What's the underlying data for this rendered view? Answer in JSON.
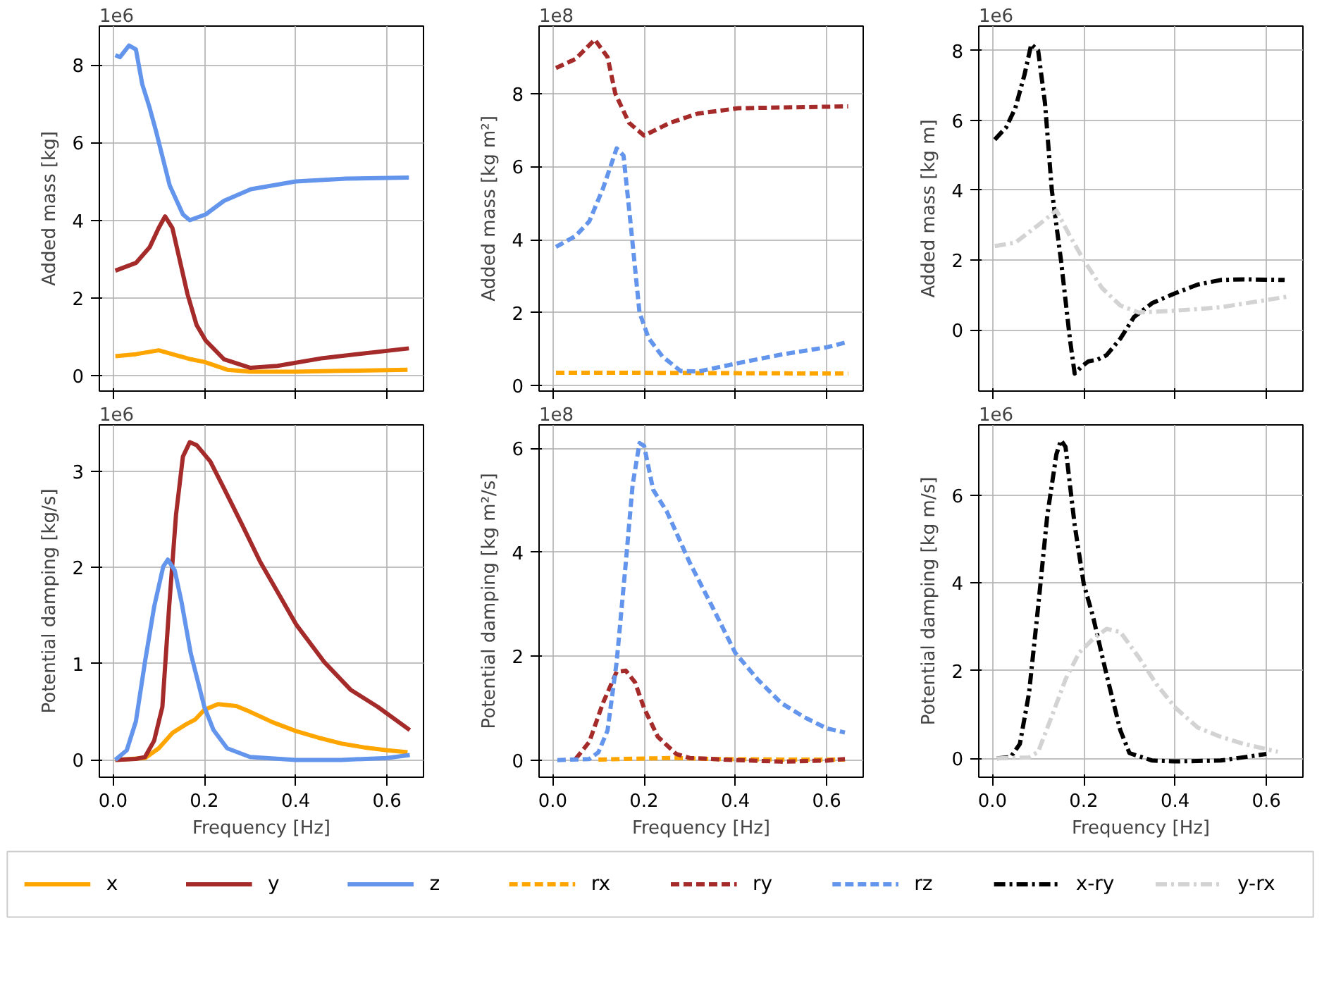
{
  "chart_data": [
    {
      "type": "line",
      "ylabel": "Added mass [kg]",
      "annotations": [
        "1e6"
      ],
      "xlim": [
        -0.03,
        0.68
      ],
      "xticks": [
        {
          "value": 0,
          "label": null
        },
        {
          "value": 0.2,
          "label": null
        },
        {
          "value": 0.4,
          "label": null
        },
        {
          "value": 0.6,
          "label": null
        }
      ],
      "ylim": [
        -0.4,
        9.0
      ],
      "yticks": [
        0,
        2,
        4,
        6,
        8
      ],
      "tick_labels": "y",
      "grid": true,
      "legend": "bottom",
      "series": [
        {
          "name": "x",
          "color": "#ffa500",
          "line_style": "solid",
          "x": [
            0.005,
            0.05,
            0.1,
            0.13,
            0.17,
            0.2,
            0.25,
            0.3,
            0.4,
            0.5,
            0.645
          ],
          "values": [
            0.5,
            0.55,
            0.65,
            0.55,
            0.42,
            0.35,
            0.15,
            0.1,
            0.1,
            0.12,
            0.15
          ]
        },
        {
          "name": "y",
          "color": "#a52a2a",
          "line_style": "solid",
          "x": [
            0.005,
            0.05,
            0.08,
            0.1,
            0.114,
            0.13,
            0.163,
            0.183,
            0.203,
            0.243,
            0.3,
            0.36,
            0.46,
            0.648
          ],
          "values": [
            2.7,
            2.9,
            3.3,
            3.8,
            4.1,
            3.8,
            2.1,
            1.3,
            0.9,
            0.42,
            0.2,
            0.25,
            0.45,
            0.7
          ]
        },
        {
          "name": "z",
          "color": "#6495ed",
          "line_style": "solid",
          "x": [
            0.005,
            0.015,
            0.035,
            0.05,
            0.064,
            0.08,
            0.094,
            0.124,
            0.153,
            0.168,
            0.203,
            0.243,
            0.302,
            0.4,
            0.51,
            0.648
          ],
          "values": [
            8.25,
            8.2,
            8.5,
            8.4,
            7.5,
            6.9,
            6.3,
            4.9,
            4.15,
            4.0,
            4.15,
            4.5,
            4.8,
            5.0,
            5.07,
            5.1
          ]
        }
      ]
    },
    {
      "type": "line",
      "ylabel": "Added mass [kg m²]",
      "annotations": [
        "1e8"
      ],
      "xlim": [
        -0.03,
        0.68
      ],
      "xticks": [
        {
          "value": 0,
          "label": null
        },
        {
          "value": 0.2,
          "label": null
        },
        {
          "value": 0.4,
          "label": null
        },
        {
          "value": 0.6,
          "label": null
        }
      ],
      "ylim": [
        -0.15,
        9.85
      ],
      "yticks": [
        0,
        2,
        4,
        6,
        8
      ],
      "tick_labels": "y",
      "grid": true,
      "legend": "bottom",
      "series": [
        {
          "name": "rx",
          "color": "#ffa500",
          "line_style": "dashed",
          "x": [
            0.007,
            0.2,
            0.4,
            0.647
          ],
          "values": [
            0.35,
            0.35,
            0.34,
            0.33
          ]
        },
        {
          "name": "ry",
          "color": "#a52a2a",
          "line_style": "dashed",
          "x": [
            0.007,
            0.05,
            0.092,
            0.12,
            0.137,
            0.167,
            0.2,
            0.257,
            0.317,
            0.407,
            0.647
          ],
          "values": [
            8.7,
            8.95,
            9.48,
            9.0,
            8.0,
            7.2,
            6.85,
            7.2,
            7.45,
            7.6,
            7.65
          ]
        },
        {
          "name": "rz",
          "color": "#6495ed",
          "line_style": "dashed",
          "x": [
            0.007,
            0.05,
            0.08,
            0.11,
            0.14,
            0.155,
            0.17,
            0.19,
            0.21,
            0.24,
            0.28,
            0.32,
            0.4,
            0.5,
            0.6,
            0.647
          ],
          "values": [
            3.8,
            4.1,
            4.5,
            5.4,
            6.5,
            6.3,
            4.5,
            2.0,
            1.3,
            0.8,
            0.4,
            0.39,
            0.6,
            0.85,
            1.05,
            1.2
          ]
        }
      ]
    },
    {
      "type": "line",
      "ylabel": "Added mass [kg m]",
      "annotations": [
        "1e6"
      ],
      "xlim": [
        -0.03,
        0.68
      ],
      "xticks": [
        {
          "value": 0,
          "label": null
        },
        {
          "value": 0.2,
          "label": null
        },
        {
          "value": 0.4,
          "label": null
        },
        {
          "value": 0.6,
          "label": null
        }
      ],
      "ylim": [
        -1.75,
        8.7
      ],
      "yticks": [
        0,
        2,
        4,
        6,
        8
      ],
      "tick_labels": "y",
      "grid": true,
      "legend": "bottom",
      "series": [
        {
          "name": "x-ry",
          "color": "#000000",
          "line_style": "dashdot",
          "x": [
            0.005,
            0.03,
            0.05,
            0.07,
            0.085,
            0.1,
            0.115,
            0.13,
            0.15,
            0.17,
            0.18,
            0.195,
            0.21,
            0.23,
            0.25,
            0.28,
            0.31,
            0.35,
            0.4,
            0.45,
            0.5,
            0.55,
            0.64
          ],
          "values": [
            5.45,
            5.8,
            6.35,
            7.3,
            8.18,
            8.0,
            6.5,
            4.0,
            2.0,
            -0.3,
            -1.25,
            -1.05,
            -0.9,
            -0.85,
            -0.72,
            -0.25,
            0.37,
            0.77,
            1.05,
            1.3,
            1.43,
            1.45,
            1.43
          ]
        },
        {
          "name": "y-rx",
          "color": "#d3d3d3",
          "line_style": "dashdot",
          "x": [
            0.005,
            0.05,
            0.1,
            0.14,
            0.17,
            0.2,
            0.24,
            0.28,
            0.32,
            0.4,
            0.5,
            0.645
          ],
          "values": [
            2.4,
            2.5,
            3.0,
            3.42,
            2.68,
            2.0,
            1.2,
            0.7,
            0.5,
            0.55,
            0.65,
            0.95
          ]
        }
      ]
    },
    {
      "type": "line",
      "xlabel": "Frequency [Hz]",
      "ylabel": "Potential damping [kg/s]",
      "annotations": [
        "1e6"
      ],
      "xlim": [
        -0.03,
        0.68
      ],
      "xticks": [
        {
          "value": 0,
          "label": "0.0"
        },
        {
          "value": 0.2,
          "label": "0.2"
        },
        {
          "value": 0.4,
          "label": "0.4"
        },
        {
          "value": 0.6,
          "label": "0.6"
        }
      ],
      "ylim": [
        -0.18,
        3.48
      ],
      "yticks": [
        0,
        1,
        2,
        3
      ],
      "grid": true,
      "series": [
        {
          "color": "#ffa500",
          "line_style": "solid",
          "x": [
            0.005,
            0.07,
            0.1,
            0.13,
            0.16,
            0.18,
            0.2,
            0.23,
            0.27,
            0.3,
            0.35,
            0.4,
            0.45,
            0.5,
            0.55,
            0.6,
            0.645
          ],
          "values": [
            0,
            0.02,
            0.12,
            0.28,
            0.37,
            0.42,
            0.52,
            0.58,
            0.56,
            0.5,
            0.39,
            0.3,
            0.23,
            0.17,
            0.13,
            0.1,
            0.08
          ]
        },
        {
          "color": "#a52a2a",
          "line_style": "solid",
          "x": [
            0.005,
            0.05,
            0.07,
            0.09,
            0.108,
            0.123,
            0.138,
            0.153,
            0.168,
            0.183,
            0.213,
            0.243,
            0.283,
            0.322,
            0.362,
            0.402,
            0.462,
            0.52,
            0.58,
            0.65
          ],
          "values": [
            0,
            0.01,
            0.03,
            0.2,
            0.55,
            1.6,
            2.55,
            3.15,
            3.3,
            3.27,
            3.1,
            2.82,
            2.44,
            2.06,
            1.73,
            1.4,
            1.02,
            0.73,
            0.55,
            0.31
          ]
        },
        {
          "color": "#6495ed",
          "line_style": "solid",
          "x": [
            0.005,
            0.03,
            0.05,
            0.07,
            0.09,
            0.11,
            0.12,
            0.135,
            0.15,
            0.17,
            0.2,
            0.22,
            0.25,
            0.3,
            0.4,
            0.5,
            0.6,
            0.65
          ],
          "values": [
            0,
            0.1,
            0.4,
            1.02,
            1.59,
            2.01,
            2.08,
            1.97,
            1.64,
            1.11,
            0.55,
            0.31,
            0.12,
            0.03,
            0.0,
            0.0,
            0.02,
            0.05
          ]
        }
      ]
    },
    {
      "type": "line",
      "xlabel": "Frequency [Hz]",
      "ylabel": "Potential damping [kg m²/s]",
      "annotations": [
        "1e8"
      ],
      "xlim": [
        -0.03,
        0.68
      ],
      "xticks": [
        {
          "value": 0,
          "label": "0.0"
        },
        {
          "value": 0.2,
          "label": "0.2"
        },
        {
          "value": 0.4,
          "label": "0.4"
        },
        {
          "value": 0.6,
          "label": "0.6"
        }
      ],
      "ylim": [
        -0.33,
        6.45
      ],
      "yticks": [
        0,
        2,
        4,
        6
      ],
      "grid": true,
      "series": [
        {
          "color": "#ffa500",
          "line_style": "dashed",
          "x": [
            0.1,
            0.2,
            0.27,
            0.35,
            0.5,
            0.64
          ],
          "values": [
            0.01,
            0.03,
            0.04,
            0.02,
            0.01,
            0.01
          ]
        },
        {
          "color": "#a52a2a",
          "line_style": "dashed",
          "x": [
            0.05,
            0.08,
            0.11,
            0.14,
            0.16,
            0.18,
            0.2,
            0.23,
            0.27,
            0.3,
            0.4,
            0.5,
            0.6,
            0.64
          ],
          "values": [
            0.02,
            0.35,
            1.1,
            1.7,
            1.72,
            1.5,
            1.0,
            0.45,
            0.12,
            0.04,
            0.0,
            -0.03,
            -0.01,
            0.02
          ]
        },
        {
          "color": "#6495ed",
          "line_style": "dashed",
          "x": [
            0.01,
            0.08,
            0.1,
            0.12,
            0.14,
            0.16,
            0.175,
            0.19,
            0.2,
            0.22,
            0.25,
            0.3,
            0.35,
            0.4,
            0.45,
            0.5,
            0.55,
            0.6,
            0.64
          ],
          "values": [
            0,
            0.02,
            0.15,
            0.57,
            1.89,
            3.8,
            5.3,
            6.1,
            6.05,
            5.2,
            4.78,
            3.8,
            2.94,
            2.06,
            1.54,
            1.1,
            0.83,
            0.61,
            0.53
          ]
        }
      ]
    },
    {
      "type": "line",
      "xlabel": "Frequency [Hz]",
      "ylabel": "Potential damping [kg m/s]",
      "annotations": [
        "1e6"
      ],
      "xlim": [
        -0.03,
        0.68
      ],
      "xticks": [
        {
          "value": 0,
          "label": "0.0"
        },
        {
          "value": 0.2,
          "label": "0.2"
        },
        {
          "value": 0.4,
          "label": "0.4"
        },
        {
          "value": 0.6,
          "label": "0.6"
        }
      ],
      "ylim": [
        -0.43,
        7.6
      ],
      "yticks": [
        0,
        2,
        4,
        6
      ],
      "grid": true,
      "series": [
        {
          "color": "#000000",
          "line_style": "dashdot",
          "x": [
            0.01,
            0.04,
            0.06,
            0.08,
            0.1,
            0.12,
            0.14,
            0.15,
            0.16,
            0.18,
            0.2,
            0.22,
            0.25,
            0.28,
            0.3,
            0.35,
            0.4,
            0.5,
            0.6
          ],
          "values": [
            0,
            0.03,
            0.33,
            1.48,
            3.45,
            5.53,
            6.93,
            7.25,
            7.1,
            5.32,
            3.97,
            3.24,
            1.9,
            0.64,
            0.12,
            -0.05,
            -0.07,
            -0.05,
            0.1
          ]
        },
        {
          "color": "#d3d3d3",
          "line_style": "dashdot",
          "x": [
            0.01,
            0.08,
            0.1,
            0.13,
            0.16,
            0.19,
            0.22,
            0.25,
            0.28,
            0.32,
            0.36,
            0.4,
            0.45,
            0.5,
            0.55,
            0.625
          ],
          "values": [
            0,
            0.02,
            0.15,
            0.96,
            1.8,
            2.41,
            2.72,
            2.95,
            2.88,
            2.31,
            1.68,
            1.16,
            0.7,
            0.49,
            0.33,
            0.15
          ]
        }
      ]
    }
  ]
}
